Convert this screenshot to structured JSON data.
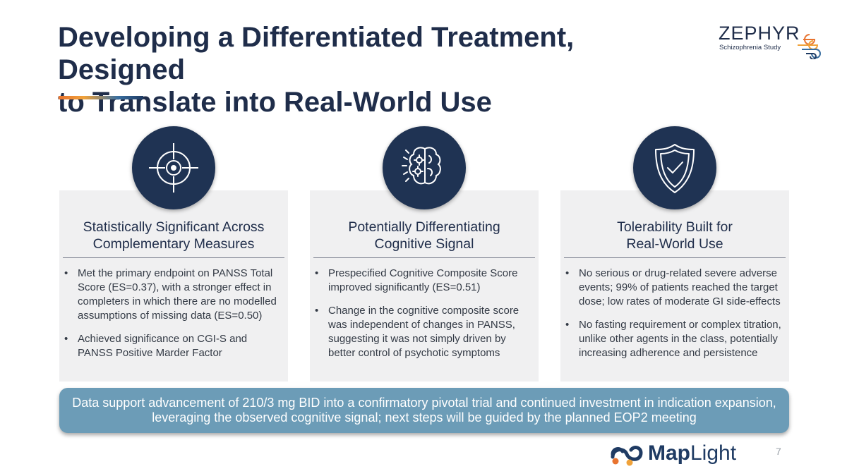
{
  "slide": {
    "title_lines": [
      "Developing a Differentiated Treatment, Designed",
      "to Translate into Real-World Use"
    ],
    "page_number": "7"
  },
  "logo_top": {
    "name": "ZEPHYR",
    "subtitle": "Schizophrenia Study"
  },
  "logo_bottom": {
    "bold": "Map",
    "light": "Light"
  },
  "cards": [
    {
      "icon": "target-icon",
      "heading_lines": [
        "Statistically Significant Across",
        "Complementary Measures"
      ],
      "bullets": [
        "Met the primary endpoint on PANSS Total Score (ES=0.37), with a stronger effect in completers in which there are no modelled assumptions of missing data (ES=0.50)",
        "Achieved significance on CGI-S and PANSS Positive Marder Factor"
      ]
    },
    {
      "icon": "brain-gears-icon",
      "heading_lines": [
        "Potentially Differentiating",
        "Cognitive Signal"
      ],
      "bullets": [
        "Prespecified Cognitive Composite Score improved significantly (ES=0.51)",
        "Change in the cognitive composite score was independent of changes in PANSS, suggesting it was not simply driven by better control of psychotic symptoms"
      ]
    },
    {
      "icon": "shield-check-icon",
      "heading_lines": [
        "Tolerability Built for",
        "Real-World Use"
      ],
      "bullets": [
        "No serious or drug-related severe adverse events; 99% of patients reached the target dose; low rates of moderate GI side-effects",
        "No fasting requirement or complex titration, unlike other agents in the class, potentially increasing adherence and persistence"
      ]
    }
  ],
  "banner": {
    "lines": [
      "Data support advancement of 210/3 mg BID into a confirmatory pivotal trial and continued investment in indication expansion,",
      "leveraging the observed cognitive signal; next steps will be guided by the planned EOP2 meeting"
    ]
  },
  "colors": {
    "navy": "#1f2d4a",
    "icon_circle": "#1f3353",
    "card_bg": "#f0f0f1",
    "banner_bg": "#6c9cb7",
    "accent_orange": "#e8732f"
  }
}
